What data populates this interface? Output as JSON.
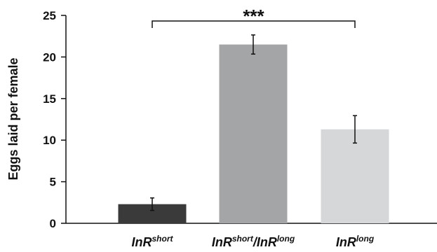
{
  "chart_data": {
    "type": "bar",
    "ylabel": "Eggs laid per female",
    "ylim": [
      0,
      25
    ],
    "yticks": [
      0,
      5,
      10,
      15,
      20,
      25
    ],
    "categories": [
      {
        "base": "InR",
        "sup": "short",
        "sup_base": "",
        "sup2": ""
      },
      {
        "base": "InR",
        "sup": "short",
        "sup_base": "/InR",
        "sup2": "long"
      },
      {
        "base": "InR",
        "sup": "long",
        "sup_base": "",
        "sup2": ""
      }
    ],
    "category_labels": [
      "InRshort",
      "InRshort/InRlong",
      "InRlong"
    ],
    "values": [
      2.3,
      21.5,
      11.3
    ],
    "errors": [
      0.75,
      1.15,
      1.65
    ],
    "colors": [
      "#3a3a3a",
      "#a4a5a7",
      "#d6d7d8"
    ],
    "significance": {
      "from": 0,
      "to": 2,
      "label": "***"
    },
    "grid": false,
    "legend": "none"
  }
}
